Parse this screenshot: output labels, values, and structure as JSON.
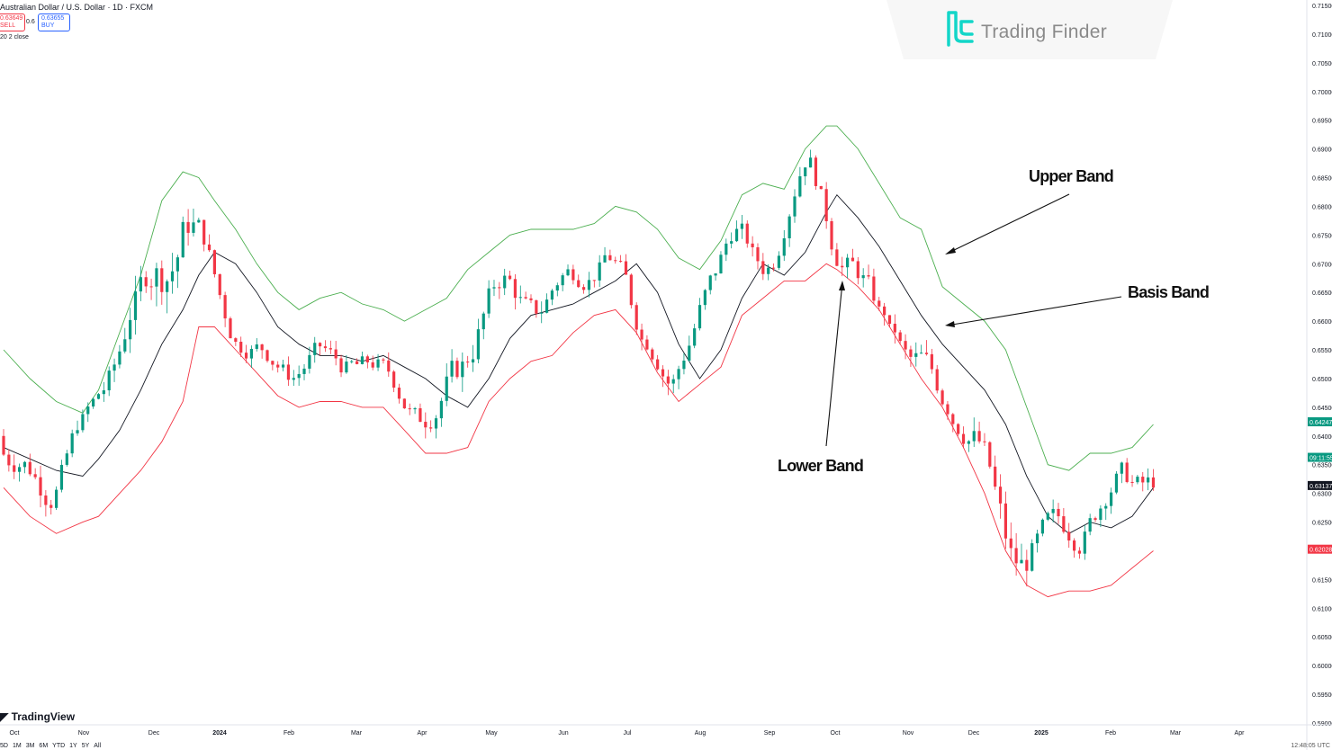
{
  "header": {
    "symbol": "Australian Dollar / U.S. Dollar · 1D · FXCM",
    "sell_price": "0.63649",
    "sell_label": "SELL",
    "spread": "0.6",
    "buy_price": "0.63655",
    "buy_label": "BUY",
    "indicator": "20 2 close"
  },
  "watermark": {
    "text": "Trading Finder"
  },
  "footer": {
    "brand": "TradingView",
    "timeframes": [
      "5D",
      "1M",
      "3M",
      "6M",
      "YTD",
      "1Y",
      "5Y",
      "All"
    ],
    "clock": "12:48:05 UTC"
  },
  "annotations": {
    "upper": "Upper Band",
    "basis": "Basis Band",
    "lower": "Lower Band"
  },
  "colors": {
    "up": "#089981",
    "down": "#f23645",
    "upper_band": "#4caf50",
    "lower_band": "#f23645",
    "basis": "#131722"
  },
  "chart_data": {
    "type": "candlestick",
    "indicator": "Bollinger Bands (20, 2, close)",
    "x_tick_labels": [
      "Oct",
      "Nov",
      "Dec",
      "2024",
      "Feb",
      "Mar",
      "Apr",
      "May",
      "Jun",
      "Jul",
      "Aug",
      "Sep",
      "Oct",
      "Nov",
      "Dec",
      "2025",
      "Feb",
      "Mar",
      "Apr"
    ],
    "y_tick_labels": [
      "0.71500",
      "0.71000",
      "0.70500",
      "0.70000",
      "0.69500",
      "0.69000",
      "0.68500",
      "0.68000",
      "0.67500",
      "0.67000",
      "0.66500",
      "0.66000",
      "0.65500",
      "0.65000",
      "0.64500",
      "0.64000",
      "0.63500",
      "0.63000",
      "0.62500",
      "0.62000",
      "0.61500",
      "0.61000",
      "0.60500",
      "0.60000",
      "0.59500",
      "0.59000"
    ],
    "ylim": [
      0.59,
      0.715
    ],
    "price_labels": [
      {
        "value": 0.64247,
        "text": "0.64247",
        "color": "#089981"
      },
      {
        "value": 0.63628,
        "text": "09:11:55",
        "color": "#089981"
      },
      {
        "value": 0.63137,
        "text": "0.63137",
        "color": "#131722"
      },
      {
        "value": 0.62028,
        "text": "0.62028",
        "color": "#f23645"
      }
    ],
    "basis": [
      [
        0,
        0.638
      ],
      [
        5,
        0.636
      ],
      [
        10,
        0.634
      ],
      [
        15,
        0.633
      ],
      [
        18,
        0.636
      ],
      [
        22,
        0.641
      ],
      [
        26,
        0.648
      ],
      [
        30,
        0.656
      ],
      [
        34,
        0.662
      ],
      [
        37,
        0.668
      ],
      [
        40,
        0.672
      ],
      [
        44,
        0.67
      ],
      [
        48,
        0.665
      ],
      [
        52,
        0.659
      ],
      [
        56,
        0.656
      ],
      [
        60,
        0.654
      ],
      [
        64,
        0.654
      ],
      [
        68,
        0.653
      ],
      [
        72,
        0.654
      ],
      [
        76,
        0.652
      ],
      [
        80,
        0.65
      ],
      [
        84,
        0.647
      ],
      [
        88,
        0.645
      ],
      [
        92,
        0.65
      ],
      [
        96,
        0.657
      ],
      [
        100,
        0.661
      ],
      [
        104,
        0.662
      ],
      [
        108,
        0.663
      ],
      [
        112,
        0.665
      ],
      [
        116,
        0.667
      ],
      [
        120,
        0.67
      ],
      [
        124,
        0.665
      ],
      [
        128,
        0.656
      ],
      [
        132,
        0.65
      ],
      [
        136,
        0.655
      ],
      [
        140,
        0.664
      ],
      [
        144,
        0.67
      ],
      [
        148,
        0.668
      ],
      [
        152,
        0.672
      ],
      [
        156,
        0.679
      ],
      [
        158,
        0.682
      ],
      [
        162,
        0.678
      ],
      [
        166,
        0.673
      ],
      [
        170,
        0.667
      ],
      [
        174,
        0.661
      ],
      [
        178,
        0.656
      ],
      [
        182,
        0.652
      ],
      [
        186,
        0.648
      ],
      [
        190,
        0.642
      ],
      [
        194,
        0.633
      ],
      [
        198,
        0.626
      ],
      [
        202,
        0.623
      ],
      [
        206,
        0.625
      ],
      [
        210,
        0.624
      ],
      [
        214,
        0.626
      ],
      [
        218,
        0.631
      ]
    ],
    "upper_band": [
      [
        0,
        0.655
      ],
      [
        5,
        0.65
      ],
      [
        10,
        0.646
      ],
      [
        15,
        0.644
      ],
      [
        18,
        0.648
      ],
      [
        22,
        0.658
      ],
      [
        26,
        0.668
      ],
      [
        30,
        0.681
      ],
      [
        34,
        0.686
      ],
      [
        37,
        0.685
      ],
      [
        40,
        0.681
      ],
      [
        44,
        0.676
      ],
      [
        48,
        0.67
      ],
      [
        52,
        0.665
      ],
      [
        56,
        0.662
      ],
      [
        60,
        0.664
      ],
      [
        64,
        0.665
      ],
      [
        68,
        0.663
      ],
      [
        72,
        0.662
      ],
      [
        76,
        0.66
      ],
      [
        80,
        0.662
      ],
      [
        84,
        0.664
      ],
      [
        88,
        0.669
      ],
      [
        92,
        0.672
      ],
      [
        96,
        0.675
      ],
      [
        100,
        0.676
      ],
      [
        104,
        0.676
      ],
      [
        108,
        0.676
      ],
      [
        112,
        0.677
      ],
      [
        116,
        0.68
      ],
      [
        120,
        0.679
      ],
      [
        124,
        0.676
      ],
      [
        128,
        0.671
      ],
      [
        132,
        0.669
      ],
      [
        136,
        0.674
      ],
      [
        140,
        0.682
      ],
      [
        144,
        0.684
      ],
      [
        148,
        0.683
      ],
      [
        152,
        0.69
      ],
      [
        156,
        0.694
      ],
      [
        158,
        0.694
      ],
      [
        162,
        0.69
      ],
      [
        166,
        0.684
      ],
      [
        170,
        0.678
      ],
      [
        174,
        0.676
      ],
      [
        178,
        0.666
      ],
      [
        182,
        0.663
      ],
      [
        186,
        0.66
      ],
      [
        190,
        0.655
      ],
      [
        194,
        0.645
      ],
      [
        198,
        0.635
      ],
      [
        202,
        0.634
      ],
      [
        206,
        0.637
      ],
      [
        210,
        0.637
      ],
      [
        214,
        0.638
      ],
      [
        218,
        0.642
      ]
    ],
    "lower_band": [
      [
        0,
        0.631
      ],
      [
        5,
        0.626
      ],
      [
        10,
        0.623
      ],
      [
        15,
        0.625
      ],
      [
        18,
        0.626
      ],
      [
        22,
        0.63
      ],
      [
        26,
        0.634
      ],
      [
        30,
        0.639
      ],
      [
        34,
        0.646
      ],
      [
        37,
        0.659
      ],
      [
        40,
        0.659
      ],
      [
        44,
        0.655
      ],
      [
        48,
        0.651
      ],
      [
        52,
        0.647
      ],
      [
        56,
        0.645
      ],
      [
        60,
        0.646
      ],
      [
        64,
        0.646
      ],
      [
        68,
        0.645
      ],
      [
        72,
        0.645
      ],
      [
        76,
        0.641
      ],
      [
        80,
        0.637
      ],
      [
        84,
        0.637
      ],
      [
        88,
        0.638
      ],
      [
        92,
        0.646
      ],
      [
        96,
        0.65
      ],
      [
        100,
        0.653
      ],
      [
        104,
        0.654
      ],
      [
        108,
        0.658
      ],
      [
        112,
        0.661
      ],
      [
        116,
        0.662
      ],
      [
        120,
        0.658
      ],
      [
        124,
        0.651
      ],
      [
        128,
        0.646
      ],
      [
        132,
        0.649
      ],
      [
        136,
        0.652
      ],
      [
        140,
        0.661
      ],
      [
        144,
        0.664
      ],
      [
        148,
        0.667
      ],
      [
        152,
        0.667
      ],
      [
        156,
        0.67
      ],
      [
        158,
        0.669
      ],
      [
        162,
        0.666
      ],
      [
        166,
        0.662
      ],
      [
        170,
        0.656
      ],
      [
        174,
        0.65
      ],
      [
        178,
        0.645
      ],
      [
        182,
        0.638
      ],
      [
        186,
        0.63
      ],
      [
        190,
        0.62
      ],
      [
        194,
        0.614
      ],
      [
        198,
        0.612
      ],
      [
        202,
        0.613
      ],
      [
        206,
        0.613
      ],
      [
        210,
        0.614
      ],
      [
        214,
        0.617
      ],
      [
        218,
        0.62
      ]
    ]
  }
}
